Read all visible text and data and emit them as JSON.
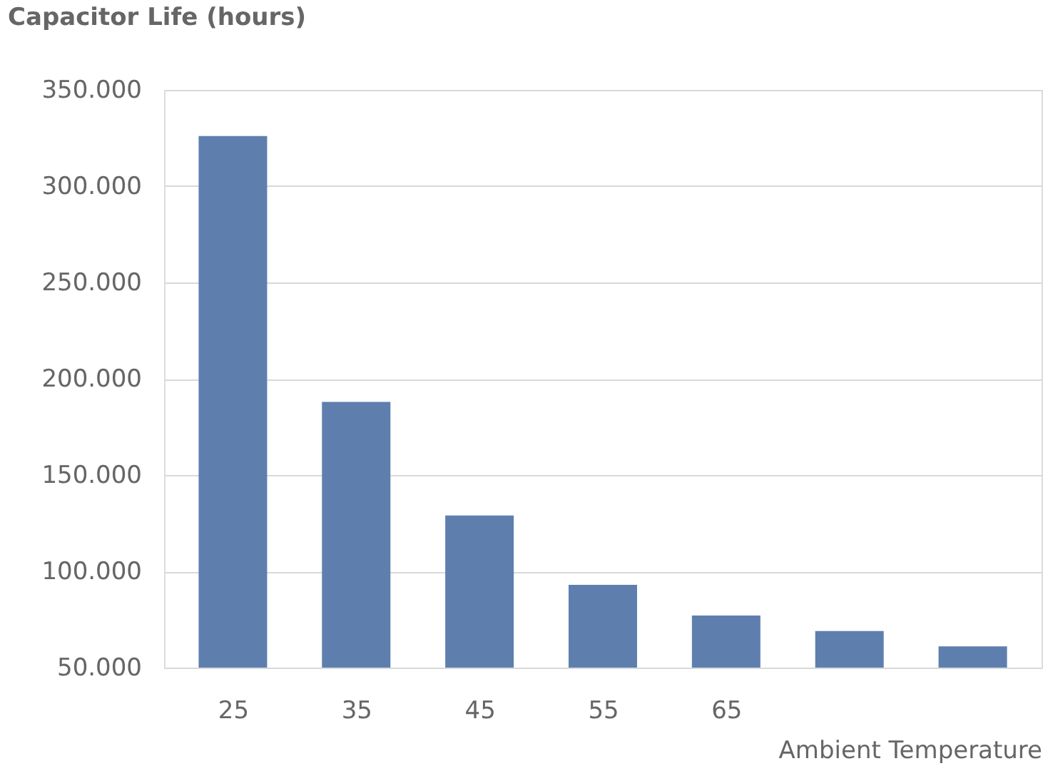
{
  "chart_data": {
    "type": "bar",
    "ylabel": "Capacitor Life (hours)",
    "xlabel": "Ambient Temperature",
    "categories": [
      "25",
      "35",
      "45",
      "55",
      "65",
      null,
      null
    ],
    "values": [
      326000,
      188000,
      129000,
      93000,
      77000,
      69000,
      61000
    ],
    "color": "#5e7fae",
    "ylim": [
      50000,
      350000
    ],
    "yticks": [
      {
        "value": 50000,
        "label": "50.000"
      },
      {
        "value": 100000,
        "label": "100.000"
      },
      {
        "value": 150000,
        "label": "150.000"
      },
      {
        "value": 200000,
        "label": "200.000"
      },
      {
        "value": 250000,
        "label": "250.000"
      },
      {
        "value": 300000,
        "label": "300.000"
      },
      {
        "value": 350000,
        "label": "350.000"
      }
    ],
    "grid": "y"
  }
}
